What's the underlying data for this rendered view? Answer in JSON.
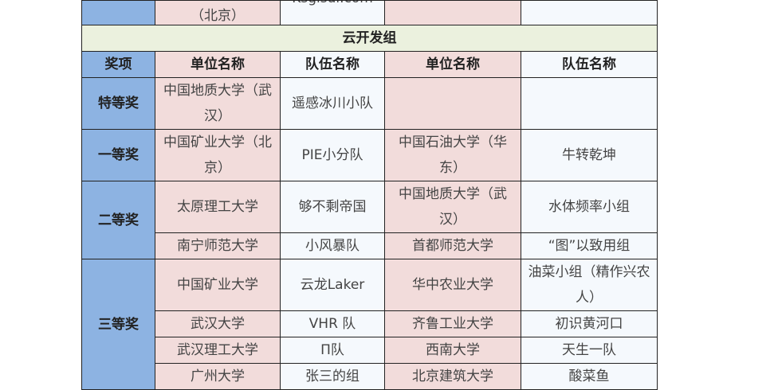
{
  "top_row": {
    "unit": "（北京）",
    "team": "Ksgisui.com"
  },
  "section_title": "云开发组",
  "headers": {
    "award": "奖项",
    "unit1": "单位名称",
    "team1": "队伍名称",
    "unit2": "单位名称",
    "team2": "队伍名称"
  },
  "awards": {
    "special": "特等奖",
    "first": "一等奖",
    "second": "二等奖",
    "third": "三等奖"
  },
  "rows": [
    {
      "unit1": "中国地质大学（武汉）",
      "team1": "遥感冰川小队",
      "unit2": "",
      "team2": ""
    },
    {
      "unit1": "中国矿业大学（北京）",
      "team1": "PIE小分队",
      "unit2": "中国石油大学（华东）",
      "team2": "牛转乾坤"
    },
    {
      "unit1": "太原理工大学",
      "team1": "够不剩帝国",
      "unit2": "中国地质大学（武汉）",
      "team2": "水体频率小组"
    },
    {
      "unit1": "南宁师范大学",
      "team1": "小风暴队",
      "unit2": "首都师范大学",
      "team2": "“图”以致用组"
    },
    {
      "unit1": "中国矿业大学",
      "team1": "云龙Laker",
      "unit2": "华中农业大学",
      "team2": "油菜小组（精作兴农人）"
    },
    {
      "unit1": "武汉大学",
      "team1": "VHR 队",
      "unit2": "齐鲁工业大学",
      "team2": "初识黄河口"
    },
    {
      "unit1": "武汉理工大学",
      "team1": "П队",
      "unit2": "西南大学",
      "team2": "天生一队"
    },
    {
      "unit1": "广州大学",
      "team1": "张三的组",
      "unit2": "北京建筑大学",
      "team2": "酸菜鱼"
    }
  ]
}
